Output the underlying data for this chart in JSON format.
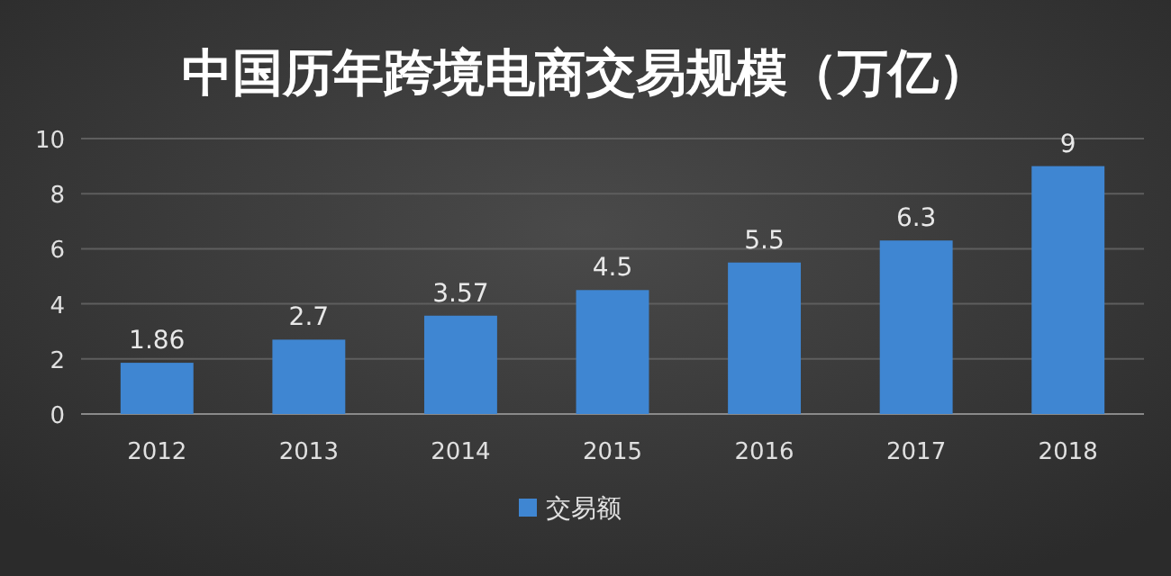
{
  "chart_data": {
    "type": "bar",
    "title": "中国历年跨境电商交易规模（万亿）",
    "categories": [
      "2012",
      "2013",
      "2014",
      "2015",
      "2016",
      "2017",
      "2018"
    ],
    "series": [
      {
        "name": "交易额",
        "color": "#3f86d2",
        "values": [
          1.86,
          2.7,
          3.57,
          4.5,
          5.5,
          6.3,
          9
        ]
      }
    ],
    "ylim": [
      0,
      10
    ],
    "yticks": [
      0,
      2,
      4,
      6,
      8,
      10
    ],
    "grid": "y",
    "legend": "bottom",
    "data_labels": true
  }
}
